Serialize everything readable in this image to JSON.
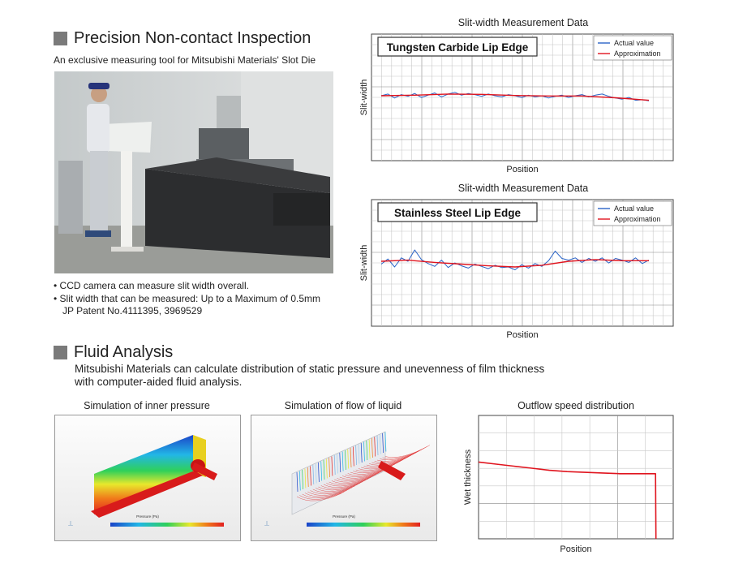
{
  "inspection": {
    "title": "Precision Non-contact Inspection",
    "subtitle": "An exclusive measuring tool for Mitsubishi Materials' Slot Die",
    "bullets": [
      "• CCD camera can measure slit width overall.",
      "• Slit width that can be measured: Up to a Maximum of 0.5mm",
      "JP Patent No.4111395, 3969529"
    ]
  },
  "fluid": {
    "title": "Fluid Analysis",
    "desc1": "Mitsubishi Materials can calculate distribution of static pressure and unevenness of film thickness",
    "desc2": "with computer-aided fluid analysis.",
    "sim1_caption": "Simulation of inner pressure",
    "sim2_caption": "Simulation of flow of liquid",
    "scale_title": "Pressure (Pa)"
  },
  "chart_data": [
    {
      "type": "line",
      "title": "Slit-width Measurement Data",
      "label": "Tungsten Carbide Lip Edge",
      "xlabel": "Position",
      "ylabel": "Slit-width",
      "ylim": [
        -5,
        5
      ],
      "grid": true,
      "legend": "top-right",
      "series": [
        {
          "name": "Actual value",
          "color": "#2a64c8",
          "x": [
            0,
            1,
            2,
            3,
            4,
            5,
            6,
            7,
            8,
            9,
            10,
            11,
            12,
            13,
            14,
            15,
            16,
            17,
            18,
            19,
            20,
            21,
            22,
            23,
            24,
            25,
            26,
            27,
            28,
            29,
            30,
            31,
            32,
            33,
            34,
            35,
            36,
            37,
            38,
            39,
            40
          ],
          "values": [
            0.0,
            0.3,
            -0.4,
            0.2,
            -0.1,
            0.4,
            -0.3,
            0.1,
            0.5,
            -0.2,
            0.3,
            0.6,
            0.1,
            0.4,
            0.2,
            -0.1,
            0.3,
            0.0,
            -0.2,
            0.2,
            0.0,
            -0.3,
            0.1,
            -0.2,
            0.0,
            -0.4,
            -0.1,
            0.1,
            -0.3,
            0.0,
            0.2,
            -0.2,
            0.1,
            0.3,
            -0.1,
            -0.4,
            -0.6,
            -0.3,
            -0.8,
            -0.7,
            -0.9
          ]
        },
        {
          "name": "Approximation",
          "color": "#e0141e",
          "x": [
            0,
            5,
            10,
            15,
            20,
            25,
            30,
            35,
            40
          ],
          "values": [
            0.0,
            0.1,
            0.3,
            0.25,
            0.05,
            -0.05,
            -0.05,
            -0.35,
            -0.8
          ]
        }
      ]
    },
    {
      "type": "line",
      "title": "Slit-width Measurement Data",
      "label": "Stainless Steel Lip Edge",
      "xlabel": "Position",
      "ylabel": "Slit-width",
      "ylim": [
        -5,
        5
      ],
      "grid": true,
      "legend": "top-right",
      "series": [
        {
          "name": "Actual value",
          "color": "#2a64c8",
          "x": [
            0,
            1,
            2,
            3,
            4,
            5,
            6,
            7,
            8,
            9,
            10,
            11,
            12,
            13,
            14,
            15,
            16,
            17,
            18,
            19,
            20,
            21,
            22,
            23,
            24,
            25,
            26,
            27,
            28,
            29,
            30,
            31,
            32,
            33,
            34,
            35,
            36,
            37,
            38,
            39,
            40
          ],
          "values": [
            -0.5,
            0.4,
            -1.0,
            0.6,
            0.0,
            2.0,
            0.3,
            -0.4,
            -0.9,
            0.2,
            -1.1,
            -0.3,
            -0.8,
            -1.2,
            -0.5,
            -0.9,
            -1.3,
            -0.7,
            -1.1,
            -1.0,
            -1.5,
            -0.6,
            -1.2,
            -0.4,
            -0.9,
            0.1,
            1.8,
            0.5,
            0.2,
            0.6,
            -0.2,
            0.5,
            0.0,
            0.6,
            -0.3,
            0.5,
            0.2,
            -0.2,
            0.6,
            -0.4,
            0.2
          ]
        },
        {
          "name": "Approximation",
          "color": "#e0141e",
          "x": [
            0,
            4,
            8,
            12,
            16,
            20,
            24,
            28,
            32,
            36,
            40
          ],
          "values": [
            0.0,
            0.2,
            -0.2,
            -0.5,
            -0.8,
            -1.0,
            -0.7,
            0.0,
            0.3,
            0.1,
            0.1
          ]
        }
      ]
    },
    {
      "type": "line",
      "title": "Outflow speed distribution",
      "xlabel": "Position",
      "ylabel": "Wet thickness",
      "grid": true,
      "series": [
        {
          "name": "",
          "color": "#e0141e",
          "x": [
            0,
            2,
            4,
            6,
            8,
            10,
            12,
            14,
            16,
            18,
            20,
            20.05
          ],
          "values": [
            5.6,
            5.45,
            5.3,
            5.15,
            5.0,
            4.9,
            4.85,
            4.8,
            4.75,
            4.75,
            4.75,
            0
          ]
        }
      ]
    }
  ]
}
